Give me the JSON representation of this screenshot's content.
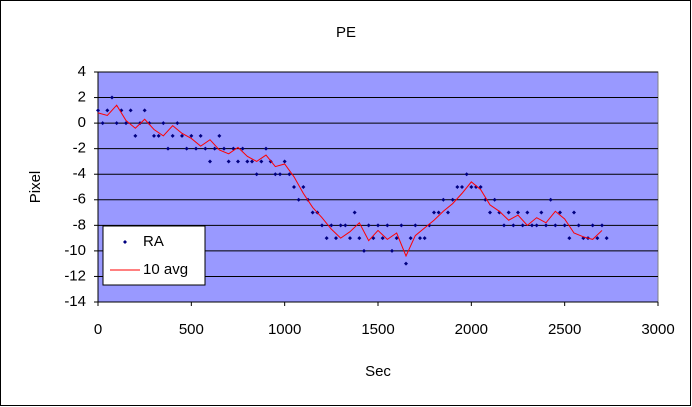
{
  "chart_data": {
    "type": "scatter",
    "title": "PE",
    "xlabel": "Sec",
    "ylabel": "Pixel",
    "xlim": [
      0,
      3000
    ],
    "xticks": [
      0,
      500,
      1000,
      1500,
      2000,
      2500,
      3000
    ],
    "ylim": [
      -14,
      4
    ],
    "yticks": [
      -14,
      -12,
      -10,
      -8,
      -6,
      -4,
      -2,
      0,
      2,
      4
    ],
    "grid": true,
    "legend": "left",
    "background": "#9999ff",
    "series": [
      {
        "name": "RA",
        "type": "scatter",
        "color": "#000080",
        "x": [
          0,
          25,
          50,
          75,
          100,
          125,
          150,
          175,
          200,
          225,
          250,
          275,
          300,
          325,
          350,
          375,
          400,
          425,
          450,
          475,
          500,
          525,
          550,
          575,
          600,
          625,
          650,
          675,
          700,
          725,
          750,
          775,
          800,
          825,
          850,
          875,
          900,
          925,
          950,
          975,
          1000,
          1025,
          1050,
          1075,
          1100,
          1125,
          1150,
          1175,
          1200,
          1225,
          1250,
          1275,
          1300,
          1325,
          1350,
          1375,
          1400,
          1425,
          1450,
          1475,
          1500,
          1525,
          1550,
          1575,
          1600,
          1625,
          1650,
          1675,
          1700,
          1725,
          1750,
          1775,
          1800,
          1825,
          1850,
          1875,
          1900,
          1925,
          1950,
          1975,
          2000,
          2025,
          2050,
          2075,
          2100,
          2125,
          2150,
          2175,
          2200,
          2225,
          2250,
          2275,
          2300,
          2325,
          2350,
          2375,
          2400,
          2425,
          2450,
          2475,
          2500,
          2525,
          2550,
          2575,
          2600,
          2625,
          2650,
          2675,
          2700,
          2725
        ],
        "values": [
          1,
          0,
          1,
          2,
          0,
          1,
          0,
          1,
          -1,
          0,
          1,
          0,
          -1,
          -1,
          0,
          -2,
          -1,
          0,
          -1,
          -2,
          -1,
          -2,
          -1,
          -2,
          -3,
          -2,
          -1,
          -2,
          -3,
          -2,
          -3,
          -2,
          -3,
          -3,
          -4,
          -3,
          -2,
          -3,
          -4,
          -4,
          -3,
          -4,
          -5,
          -6,
          -5,
          -6,
          -7,
          -7,
          -8,
          -9,
          -8,
          -9,
          -8,
          -8,
          -9,
          -7,
          -9,
          -10,
          -8,
          -9,
          -8,
          -9,
          -8,
          -10,
          -9,
          -8,
          -11,
          -9,
          -8,
          -9,
          -9,
          -8,
          -7,
          -7,
          -6,
          -7,
          -6,
          -5,
          -5,
          -4,
          -5,
          -5,
          -5,
          -6,
          -7,
          -6,
          -7,
          -8,
          -7,
          -8,
          -7,
          -8,
          -7,
          -8,
          -8,
          -7,
          -8,
          -6,
          -8,
          -7,
          -8,
          -9,
          -7,
          -8,
          -9,
          -9,
          -8,
          -9,
          -8,
          -9
        ]
      },
      {
        "name": "10 avg",
        "type": "line",
        "color": "#ff0000",
        "x": [
          0,
          50,
          100,
          150,
          200,
          250,
          300,
          350,
          400,
          450,
          500,
          550,
          600,
          650,
          700,
          750,
          800,
          850,
          900,
          950,
          1000,
          1050,
          1100,
          1150,
          1200,
          1250,
          1300,
          1350,
          1400,
          1450,
          1500,
          1550,
          1600,
          1650,
          1700,
          1750,
          1800,
          1850,
          1900,
          1950,
          2000,
          2050,
          2100,
          2150,
          2200,
          2250,
          2300,
          2350,
          2400,
          2450,
          2500,
          2550,
          2600,
          2650,
          2700
        ],
        "values": [
          0.8,
          0.6,
          1.4,
          0.2,
          -0.4,
          0.3,
          -0.5,
          -1,
          -0.2,
          -0.8,
          -1.2,
          -1.8,
          -1.3,
          -2.1,
          -2.4,
          -1.9,
          -2.6,
          -3,
          -2.5,
          -3.4,
          -3.2,
          -4.2,
          -5.5,
          -6.6,
          -7.4,
          -8.3,
          -9,
          -8.5,
          -7.8,
          -9.2,
          -8.4,
          -9.1,
          -8.6,
          -10.4,
          -8.8,
          -8.2,
          -7.6,
          -6.9,
          -6.3,
          -5.5,
          -4.6,
          -5.2,
          -6.4,
          -6.9,
          -7.6,
          -7.2,
          -8,
          -7.4,
          -7.8,
          -6.9,
          -7.5,
          -8.6,
          -8.9,
          -9.1,
          -8.4
        ]
      }
    ]
  }
}
